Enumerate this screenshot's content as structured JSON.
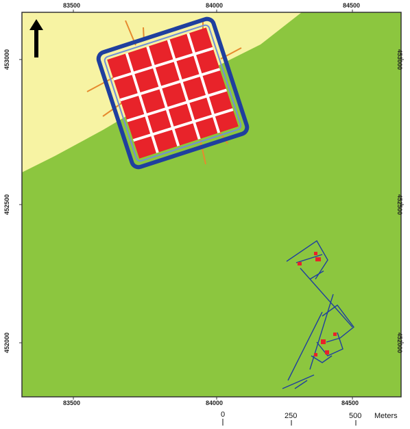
{
  "colors": {
    "background": "#ffffff",
    "field_green": "#8cc63f",
    "sand_yellow": "#f7f3a3",
    "enclosure_red": "#e8232a",
    "wall_blue": "#1f3f9e",
    "path_orange": "#e68a2e",
    "frame": "#333333"
  },
  "axis": {
    "top": [
      "83500",
      "84000",
      "84500"
    ],
    "bottom": [
      "83500",
      "84000",
      "84500"
    ],
    "left": [
      "453000",
      "452500",
      "452000"
    ],
    "right": [
      "453000",
      "452500",
      "452000"
    ]
  },
  "north_arrow": {
    "icon": "north-arrow-icon"
  },
  "scale_bar": {
    "ticks": [
      "0",
      "250",
      "500"
    ],
    "unit": "Meters"
  }
}
